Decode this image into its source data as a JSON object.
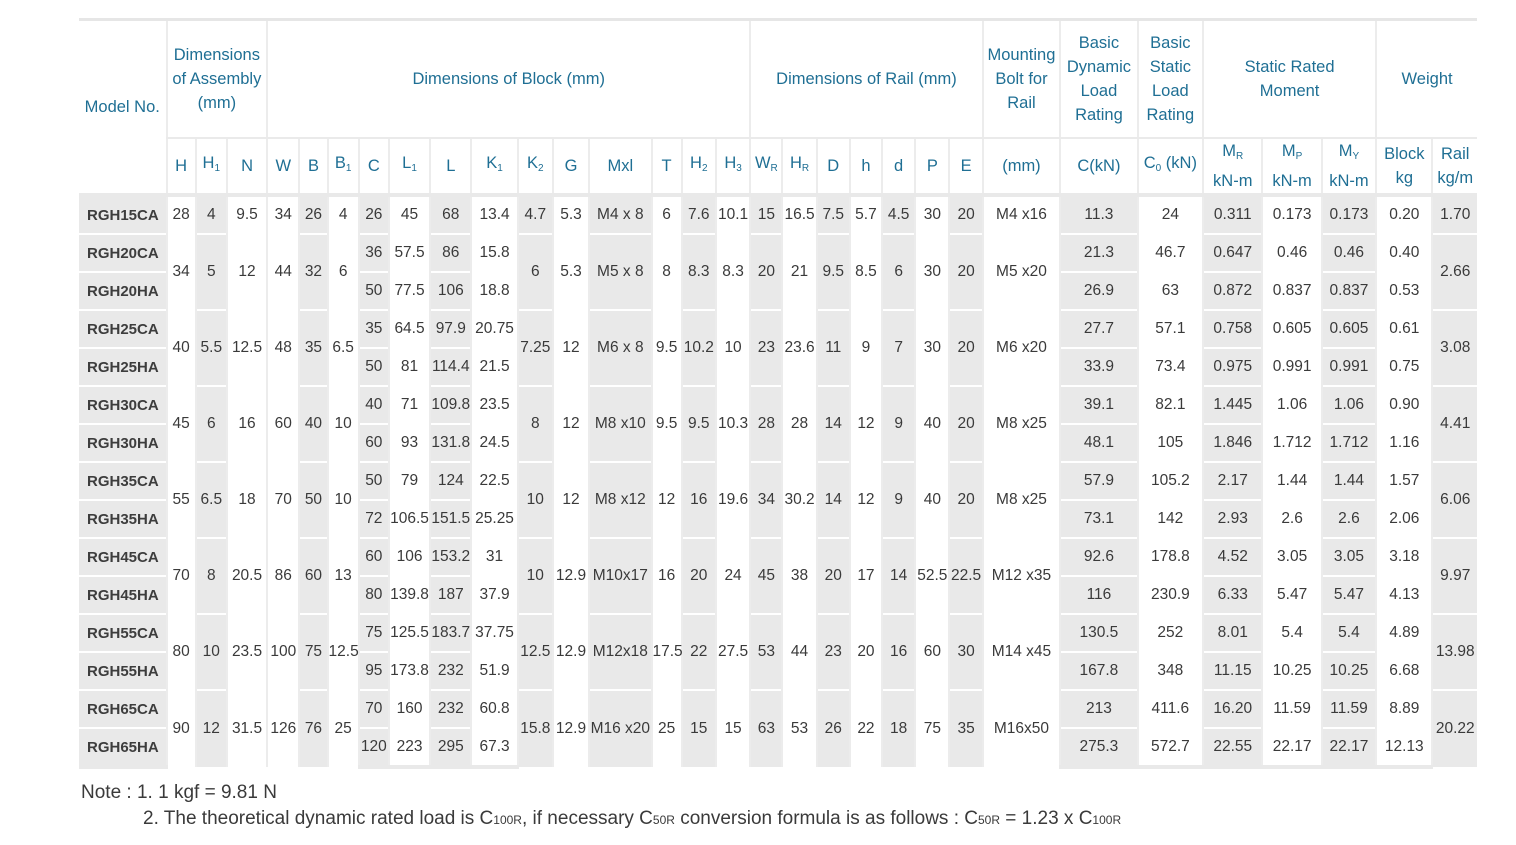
{
  "headers": {
    "model": "Model No.",
    "assembly": [
      "Dimensions",
      "of Assembly",
      "(mm)"
    ],
    "block": "Dimensions of Block (mm)",
    "rail": "Dimensions of Rail (mm)",
    "bolt": [
      "Mounting",
      "Bolt for",
      "Rail"
    ],
    "bolt_unit": "(mm)",
    "dyn": [
      "Basic",
      "Dynamic",
      "Load",
      "Rating"
    ],
    "dyn_unit": "C(kN)",
    "stat": [
      "Basic",
      "Static",
      "Load",
      "Rating"
    ],
    "stat_unit_main": "C",
    "stat_unit_sub": "0",
    "stat_unit_rest": " (kN)",
    "moment": [
      "Static Rated",
      "Moment"
    ],
    "weight": "Weight",
    "cols": {
      "H": "H",
      "H1": "H",
      "H1_sub": "1",
      "N": "N",
      "W": "W",
      "B": "B",
      "B1": "B",
      "B1_sub": "1",
      "C": "C",
      "L1": "L",
      "L1_sub": "1",
      "L": "L",
      "K1": "K",
      "K1_sub": "1",
      "K2": "K",
      "K2_sub": "2",
      "G": "G",
      "Mxl": "Mxl",
      "T": "T",
      "H2": "H",
      "H2_sub": "2",
      "H3": "H",
      "H3_sub": "3",
      "WR": "W",
      "WR_sub": "R",
      "HR": "H",
      "HR_sub": "R",
      "D": "D",
      "h": "h",
      "d": "d",
      "P": "P",
      "E": "E",
      "MR": "M",
      "MR_sub": "R",
      "MP": "M",
      "MP_sub": "P",
      "MY": "M",
      "MY_sub": "Y",
      "block": "Block",
      "rail": "Rail"
    },
    "moment_unit": "kN-m",
    "block_unit": "kg",
    "rail_unit": "kg/m"
  },
  "rows": [
    {
      "model": "RGH15CA",
      "H": "28",
      "H1": "4",
      "N": "9.5",
      "W": "34",
      "B": "26",
      "B1": "4",
      "C": "26",
      "L1": "45",
      "L": "68",
      "K1": "13.4",
      "K2": "4.7",
      "G": "5.3",
      "Mxl": "M4 x 8",
      "T": "6",
      "H2": "7.6",
      "H3": "10.1",
      "WR": "15",
      "HR": "16.5",
      "D": "7.5",
      "h": "5.7",
      "d": "4.5",
      "P": "30",
      "E": "20",
      "bolt": "M4 x16",
      "Cdyn": "11.3",
      "C0": "24",
      "MR": "0.311",
      "MP": "0.173",
      "MY": "0.173",
      "wblock": "0.20",
      "wrail": "1.70"
    },
    {
      "model": "RGH20CA",
      "H": "34",
      "H1": "5",
      "N": "12",
      "W": "44",
      "B": "32",
      "B1": "6",
      "C": "36",
      "L1": "57.5",
      "L": "86",
      "K1": "15.8",
      "K2": "6",
      "G": "5.3",
      "Mxl": "M5 x 8",
      "T": "8",
      "H2": "8.3",
      "H3": "8.3",
      "WR": "20",
      "HR": "21",
      "D": "9.5",
      "h": "8.5",
      "d": "6",
      "P": "30",
      "E": "20",
      "bolt": "M5 x20",
      "Cdyn": "21.3",
      "C0": "46.7",
      "MR": "0.647",
      "MP": "0.46",
      "MY": "0.46",
      "wblock": "0.40",
      "wrail": "2.66"
    },
    {
      "model": "RGH20HA",
      "C": "50",
      "L1": "77.5",
      "L": "106",
      "K1": "18.8",
      "Cdyn": "26.9",
      "C0": "63",
      "MR": "0.872",
      "MP": "0.837",
      "MY": "0.837",
      "wblock": "0.53"
    },
    {
      "model": "RGH25CA",
      "H": "40",
      "H1": "5.5",
      "N": "12.5",
      "W": "48",
      "B": "35",
      "B1": "6.5",
      "C": "35",
      "L1": "64.5",
      "L": "97.9",
      "K1": "20.75",
      "K2": "7.25",
      "G": "12",
      "Mxl": "M6 x 8",
      "T": "9.5",
      "H2": "10.2",
      "H3": "10",
      "WR": "23",
      "HR": "23.6",
      "D": "11",
      "h": "9",
      "d": "7",
      "P": "30",
      "E": "20",
      "bolt": "M6 x20",
      "Cdyn": "27.7",
      "C0": "57.1",
      "MR": "0.758",
      "MP": "0.605",
      "MY": "0.605",
      "wblock": "0.61",
      "wrail": "3.08"
    },
    {
      "model": "RGH25HA",
      "C": "50",
      "L1": "81",
      "L": "114.4",
      "K1": "21.5",
      "Cdyn": "33.9",
      "C0": "73.4",
      "MR": "0.975",
      "MP": "0.991",
      "MY": "0.991",
      "wblock": "0.75"
    },
    {
      "model": "RGH30CA",
      "H": "45",
      "H1": "6",
      "N": "16",
      "W": "60",
      "B": "40",
      "B1": "10",
      "C": "40",
      "L1": "71",
      "L": "109.8",
      "K1": "23.5",
      "K2": "8",
      "G": "12",
      "Mxl": "M8 x10",
      "T": "9.5",
      "H2": "9.5",
      "H3": "10.3",
      "WR": "28",
      "HR": "28",
      "D": "14",
      "h": "12",
      "d": "9",
      "P": "40",
      "E": "20",
      "bolt": "M8 x25",
      "Cdyn": "39.1",
      "C0": "82.1",
      "MR": "1.445",
      "MP": "1.06",
      "MY": "1.06",
      "wblock": "0.90",
      "wrail": "4.41"
    },
    {
      "model": "RGH30HA",
      "C": "60",
      "L1": "93",
      "L": "131.8",
      "K1": "24.5",
      "Cdyn": "48.1",
      "C0": "105",
      "MR": "1.846",
      "MP": "1.712",
      "MY": "1.712",
      "wblock": "1.16"
    },
    {
      "model": "RGH35CA",
      "H": "55",
      "H1": "6.5",
      "N": "18",
      "W": "70",
      "B": "50",
      "B1": "10",
      "C": "50",
      "L1": "79",
      "L": "124",
      "K1": "22.5",
      "K2": "10",
      "G": "12",
      "Mxl": "M8 x12",
      "T": "12",
      "H2": "16",
      "H3": "19.6",
      "WR": "34",
      "HR": "30.2",
      "D": "14",
      "h": "12",
      "d": "9",
      "P": "40",
      "E": "20",
      "bolt": "M8 x25",
      "Cdyn": "57.9",
      "C0": "105.2",
      "MR": "2.17",
      "MP": "1.44",
      "MY": "1.44",
      "wblock": "1.57",
      "wrail": "6.06"
    },
    {
      "model": "RGH35HA",
      "C": "72",
      "L1": "106.5",
      "L": "151.5",
      "K1": "25.25",
      "Cdyn": "73.1",
      "C0": "142",
      "MR": "2.93",
      "MP": "2.6",
      "MY": "2.6",
      "wblock": "2.06"
    },
    {
      "model": "RGH45CA",
      "H": "70",
      "H1": "8",
      "N": "20.5",
      "W": "86",
      "B": "60",
      "B1": "13",
      "C": "60",
      "L1": "106",
      "L": "153.2",
      "K1": "31",
      "K2": "10",
      "G": "12.9",
      "Mxl": "M10x17",
      "T": "16",
      "H2": "20",
      "H3": "24",
      "WR": "45",
      "HR": "38",
      "D": "20",
      "h": "17",
      "d": "14",
      "P": "52.5",
      "E": "22.5",
      "bolt": "M12 x35",
      "Cdyn": "92.6",
      "C0": "178.8",
      "MR": "4.52",
      "MP": "3.05",
      "MY": "3.05",
      "wblock": "3.18",
      "wrail": "9.97"
    },
    {
      "model": "RGH45HA",
      "C": "80",
      "L1": "139.8",
      "L": "187",
      "K1": "37.9",
      "Cdyn": "116",
      "C0": "230.9",
      "MR": "6.33",
      "MP": "5.47",
      "MY": "5.47",
      "wblock": "4.13"
    },
    {
      "model": "RGH55CA",
      "H": "80",
      "H1": "10",
      "N": "23.5",
      "W": "100",
      "B": "75",
      "B1": "12.5",
      "C": "75",
      "L1": "125.5",
      "L": "183.7",
      "K1": "37.75",
      "K2": "12.5",
      "G": "12.9",
      "Mxl": "M12x18",
      "T": "17.5",
      "H2": "22",
      "H3": "27.5",
      "WR": "53",
      "HR": "44",
      "D": "23",
      "h": "20",
      "d": "16",
      "P": "60",
      "E": "30",
      "bolt": "M14 x45",
      "Cdyn": "130.5",
      "C0": "252",
      "MR": "8.01",
      "MP": "5.4",
      "MY": "5.4",
      "wblock": "4.89",
      "wrail": "13.98"
    },
    {
      "model": "RGH55HA",
      "C": "95",
      "L1": "173.8",
      "L": "232",
      "K1": "51.9",
      "Cdyn": "167.8",
      "C0": "348",
      "MR": "11.15",
      "MP": "10.25",
      "MY": "10.25",
      "wblock": "6.68"
    },
    {
      "model": "RGH65CA",
      "H": "90",
      "H1": "12",
      "N": "31.5",
      "W": "126",
      "B": "76",
      "B1": "25",
      "C": "70",
      "L1": "160",
      "L": "232",
      "K1": "60.8",
      "K2": "15.8",
      "G": "12.9",
      "Mxl": "M16 x20",
      "T": "25",
      "H2": "15",
      "H3": "15",
      "WR": "63",
      "HR": "53",
      "D": "26",
      "h": "22",
      "d": "18",
      "P": "75",
      "E": "35",
      "bolt": "M16x50",
      "Cdyn": "213",
      "C0": "411.6",
      "MR": "16.20",
      "MP": "11.59",
      "MY": "11.59",
      "wblock": "8.89",
      "wrail": "20.22"
    },
    {
      "model": "RGH65HA",
      "C": "120",
      "L1": "223",
      "L": "295",
      "K1": "67.3",
      "Cdyn": "275.3",
      "C0": "572.7",
      "MR": "22.55",
      "MP": "22.17",
      "MY": "22.17",
      "wblock": "12.13"
    }
  ],
  "notes": {
    "n1": "Note : 1. 1 kgf = 9.81 N",
    "n2_a": "2. The theoretical dynamic rated load is C",
    "n2_s1": "100R",
    "n2_b": ", if necessary C",
    "n2_s2": "50R",
    "n2_c": " conversion formula is as follows : C",
    "n2_s3": "50R",
    "n2_d": " = 1.23 x C",
    "n2_s4": "100R"
  }
}
